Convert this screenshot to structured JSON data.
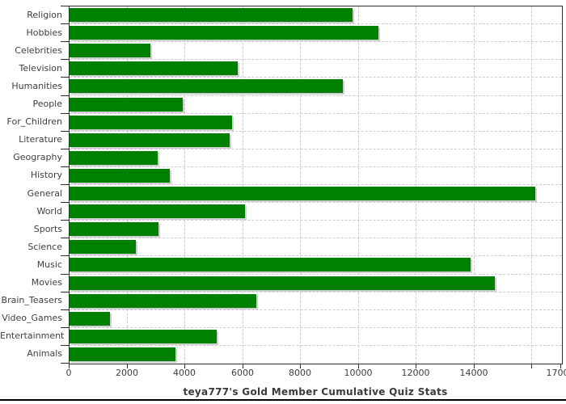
{
  "title": "teya777's Gold Member Cumulative Quiz Stats",
  "colors": {
    "bar": "#008000",
    "bar_shadow": "#cfcfcf",
    "grid": "#cccccc",
    "axis": "#2e2e2e",
    "text": "#3f3f3f"
  },
  "chart_data": {
    "type": "bar",
    "orientation": "horizontal",
    "title": "teya777's Gold Member Cumulative Quiz Stats",
    "categories": [
      "Religion",
      "Hobbies",
      "Celebrities",
      "Television",
      "Humanities",
      "People",
      "For_Children",
      "Literature",
      "Geography",
      "History",
      "General",
      "World",
      "Sports",
      "Science",
      "Music",
      "Movies",
      "Brain_Teasers",
      "Video_Games",
      "Entertainment",
      "Animals"
    ],
    "values": [
      9800,
      10690,
      2790,
      5830,
      9440,
      3920,
      5630,
      5550,
      3040,
      3460,
      16120,
      6080,
      3090,
      2300,
      13880,
      14710,
      6470,
      1410,
      5100,
      3650
    ],
    "xlabel": "",
    "ylabel": "",
    "xlim": [
      0,
      17000
    ],
    "x_ticks": [
      0,
      2000,
      4000,
      6000,
      8000,
      10000,
      12000,
      14000,
      16000,
      17000
    ],
    "x_tick_labels": [
      "0",
      "2000",
      "4000",
      "6000",
      "8000",
      "10000",
      "12000",
      "14000",
      "",
      "17000"
    ],
    "grid": "dashed",
    "legend": "none",
    "bar_color": "#008000"
  }
}
